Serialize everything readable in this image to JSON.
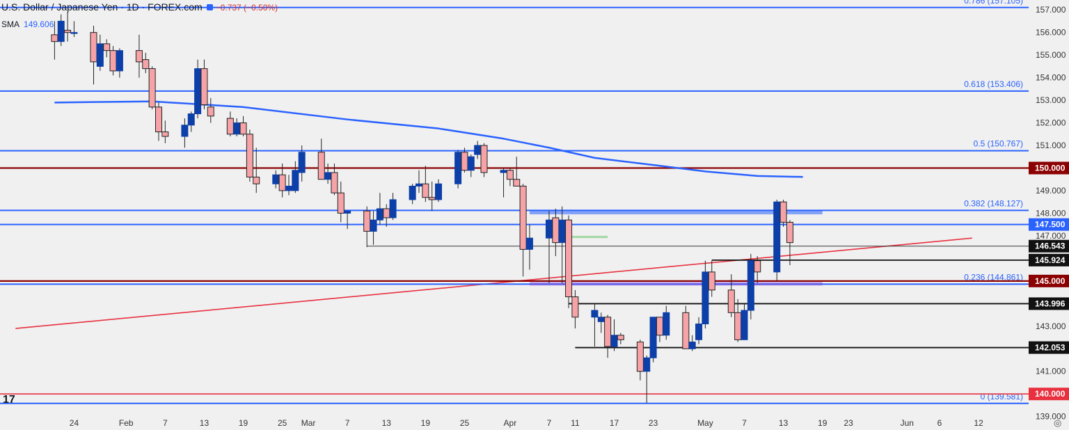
{
  "header": {
    "title": "U.S. Dollar / Japanese Yen · 1D · FOREX.com",
    "change": "−0.737 (−0.50%)"
  },
  "indicator": {
    "name": "SMA",
    "value": "149.606"
  },
  "colors": {
    "background": "#f0f0f0",
    "up_candle": "#0d3fa8",
    "down_candle": "#f5a3a7",
    "fib_line": "#2962ff",
    "sma_line": "#2962ff",
    "round_level": "#8b0000",
    "trendline": "#e8303f"
  },
  "chart_data": {
    "type": "candlestick",
    "title": "U.S. Dollar / Japanese Yen · 1D · FOREX.com",
    "symbol": "USD/JPY",
    "timeframe": "1D",
    "ylim": [
      139.0,
      157.3
    ],
    "y_ticks": [
      "157.000",
      "156.000",
      "155.000",
      "154.000",
      "153.000",
      "152.000",
      "151.000",
      "150.000",
      "149.000",
      "148.000",
      "147.000",
      "146.000",
      "145.000",
      "144.000",
      "143.000",
      "142.000",
      "141.000",
      "140.000",
      "139.000"
    ],
    "x_ticks": [
      "24",
      "Feb",
      "7",
      "13",
      "19",
      "25",
      "Mar",
      "7",
      "13",
      "19",
      "25",
      "Apr",
      "7",
      "11",
      "17",
      "23",
      "May",
      "7",
      "13",
      "19",
      "23",
      "Jun",
      "6",
      "12"
    ],
    "candles": [
      {
        "d": "2025-01-21",
        "o": 155.9,
        "h": 156.5,
        "l": 154.8,
        "c": 155.6
      },
      {
        "d": "2025-01-22",
        "o": 155.6,
        "h": 156.8,
        "l": 155.4,
        "c": 156.5
      },
      {
        "d": "2025-01-23",
        "o": 156.1,
        "h": 156.9,
        "l": 155.6,
        "c": 156.0
      },
      {
        "d": "2025-01-24",
        "o": 156.0,
        "h": 156.5,
        "l": 155.8,
        "c": 156.0
      },
      {
        "d": "2025-01-27",
        "o": 156.0,
        "h": 156.3,
        "l": 153.7,
        "c": 154.7
      },
      {
        "d": "2025-01-28",
        "o": 154.5,
        "h": 155.9,
        "l": 154.3,
        "c": 155.5
      },
      {
        "d": "2025-01-29",
        "o": 155.5,
        "h": 155.7,
        "l": 154.9,
        "c": 155.2
      },
      {
        "d": "2025-01-30",
        "o": 155.2,
        "h": 155.4,
        "l": 154.1,
        "c": 154.3
      },
      {
        "d": "2025-01-31",
        "o": 154.3,
        "h": 155.3,
        "l": 154.0,
        "c": 155.2
      },
      {
        "d": "2025-02-03",
        "o": 155.2,
        "h": 155.9,
        "l": 154.0,
        "c": 154.7
      },
      {
        "d": "2025-02-04",
        "o": 154.8,
        "h": 155.1,
        "l": 154.2,
        "c": 154.4
      },
      {
        "d": "2025-02-05",
        "o": 154.4,
        "h": 154.5,
        "l": 152.6,
        "c": 152.7
      },
      {
        "d": "2025-02-06",
        "o": 152.7,
        "h": 152.9,
        "l": 151.2,
        "c": 151.6
      },
      {
        "d": "2025-02-07",
        "o": 151.6,
        "h": 152.1,
        "l": 151.1,
        "c": 151.4
      },
      {
        "d": "2025-02-10",
        "o": 151.4,
        "h": 152.2,
        "l": 150.9,
        "c": 151.9
      },
      {
        "d": "2025-02-11",
        "o": 151.9,
        "h": 152.5,
        "l": 151.6,
        "c": 152.4
      },
      {
        "d": "2025-02-12",
        "o": 152.4,
        "h": 154.8,
        "l": 152.2,
        "c": 154.4
      },
      {
        "d": "2025-02-13",
        "o": 154.4,
        "h": 154.8,
        "l": 152.6,
        "c": 152.8
      },
      {
        "d": "2025-02-14",
        "o": 152.7,
        "h": 153.1,
        "l": 152.0,
        "c": 152.3
      },
      {
        "d": "2025-02-17",
        "o": 152.2,
        "h": 152.5,
        "l": 151.4,
        "c": 151.5
      },
      {
        "d": "2025-02-18",
        "o": 151.5,
        "h": 152.2,
        "l": 151.4,
        "c": 152.0
      },
      {
        "d": "2025-02-19",
        "o": 152.0,
        "h": 152.3,
        "l": 151.4,
        "c": 151.5
      },
      {
        "d": "2025-02-20",
        "o": 151.5,
        "h": 151.7,
        "l": 149.4,
        "c": 149.6
      },
      {
        "d": "2025-02-21",
        "o": 149.6,
        "h": 150.9,
        "l": 148.9,
        "c": 149.3
      },
      {
        "d": "2025-02-24",
        "o": 149.3,
        "h": 149.9,
        "l": 149.1,
        "c": 149.7
      },
      {
        "d": "2025-02-25",
        "o": 149.7,
        "h": 150.2,
        "l": 148.7,
        "c": 149.0
      },
      {
        "d": "2025-02-26",
        "o": 149.0,
        "h": 149.7,
        "l": 148.8,
        "c": 149.2
      },
      {
        "d": "2025-02-27",
        "o": 149.0,
        "h": 150.3,
        "l": 148.9,
        "c": 149.9
      },
      {
        "d": "2025-02-28",
        "o": 149.8,
        "h": 151.0,
        "l": 149.4,
        "c": 150.7
      },
      {
        "d": "2025-03-03",
        "o": 150.7,
        "h": 151.3,
        "l": 149.5,
        "c": 149.5
      },
      {
        "d": "2025-03-04",
        "o": 149.5,
        "h": 150.2,
        "l": 149.3,
        "c": 149.8
      },
      {
        "d": "2025-03-05",
        "o": 149.8,
        "h": 150.2,
        "l": 148.8,
        "c": 148.9
      },
      {
        "d": "2025-03-06",
        "o": 148.9,
        "h": 149.4,
        "l": 147.6,
        "c": 148.0
      },
      {
        "d": "2025-03-07",
        "o": 148.0,
        "h": 148.1,
        "l": 147.3,
        "c": 148.1
      },
      {
        "d": "2025-03-10",
        "o": 148.1,
        "h": 148.3,
        "l": 146.5,
        "c": 147.2
      },
      {
        "d": "2025-03-11",
        "o": 147.2,
        "h": 148.1,
        "l": 146.6,
        "c": 147.7
      },
      {
        "d": "2025-03-12",
        "o": 147.7,
        "h": 148.9,
        "l": 147.5,
        "c": 148.2
      },
      {
        "d": "2025-03-13",
        "o": 148.2,
        "h": 148.4,
        "l": 147.4,
        "c": 147.8
      },
      {
        "d": "2025-03-14",
        "o": 147.8,
        "h": 148.9,
        "l": 147.7,
        "c": 148.6
      },
      {
        "d": "2025-03-17",
        "o": 148.6,
        "h": 149.3,
        "l": 148.4,
        "c": 149.2
      },
      {
        "d": "2025-03-18",
        "o": 149.2,
        "h": 149.9,
        "l": 148.9,
        "c": 149.3
      },
      {
        "d": "2025-03-19",
        "o": 149.3,
        "h": 150.1,
        "l": 148.5,
        "c": 148.7
      },
      {
        "d": "2025-03-20",
        "o": 148.7,
        "h": 149.4,
        "l": 148.1,
        "c": 148.6
      },
      {
        "d": "2025-03-21",
        "o": 148.6,
        "h": 149.5,
        "l": 148.5,
        "c": 149.3
      },
      {
        "d": "2025-03-24",
        "o": 149.3,
        "h": 150.8,
        "l": 149.1,
        "c": 150.7
      },
      {
        "d": "2025-03-25",
        "o": 150.7,
        "h": 150.9,
        "l": 149.8,
        "c": 149.9
      },
      {
        "d": "2025-03-26",
        "o": 149.9,
        "h": 150.6,
        "l": 149.6,
        "c": 150.5
      },
      {
        "d": "2025-03-27",
        "o": 150.6,
        "h": 151.2,
        "l": 150.4,
        "c": 151.0
      },
      {
        "d": "2025-03-28",
        "o": 151.0,
        "h": 151.1,
        "l": 149.6,
        "c": 149.8
      },
      {
        "d": "2025-03-31",
        "o": 149.8,
        "h": 150.0,
        "l": 148.7,
        "c": 149.9
      },
      {
        "d": "2025-04-01",
        "o": 149.9,
        "h": 150.0,
        "l": 149.2,
        "c": 149.5
      },
      {
        "d": "2025-04-02",
        "o": 149.5,
        "h": 150.5,
        "l": 149.2,
        "c": 149.2
      },
      {
        "d": "2025-04-03",
        "o": 149.2,
        "h": 149.3,
        "l": 145.2,
        "c": 146.4
      },
      {
        "d": "2025-04-04",
        "o": 146.4,
        "h": 147.5,
        "l": 145.5,
        "c": 146.9
      },
      {
        "d": "2025-04-07",
        "o": 146.9,
        "h": 148.1,
        "l": 144.9,
        "c": 147.7
      },
      {
        "d": "2025-04-08",
        "o": 147.8,
        "h": 148.2,
        "l": 146.1,
        "c": 146.7
      },
      {
        "d": "2025-04-09",
        "o": 146.7,
        "h": 148.3,
        "l": 144.9,
        "c": 147.7
      },
      {
        "d": "2025-04-10",
        "o": 147.7,
        "h": 147.9,
        "l": 143.8,
        "c": 144.3
      },
      {
        "d": "2025-04-11",
        "o": 144.3,
        "h": 144.6,
        "l": 142.9,
        "c": 143.4
      },
      {
        "d": "2025-04-14",
        "o": 143.4,
        "h": 144.0,
        "l": 142.1,
        "c": 143.7
      },
      {
        "d": "2025-04-15",
        "o": 143.2,
        "h": 143.6,
        "l": 142.7,
        "c": 143.4
      },
      {
        "d": "2025-04-16",
        "o": 143.4,
        "h": 143.5,
        "l": 141.6,
        "c": 142.1
      },
      {
        "d": "2025-04-17",
        "o": 142.1,
        "h": 143.3,
        "l": 141.9,
        "c": 142.6
      },
      {
        "d": "2025-04-18",
        "o": 142.6,
        "h": 142.7,
        "l": 142.2,
        "c": 142.4
      },
      {
        "d": "2025-04-21",
        "o": 142.3,
        "h": 142.4,
        "l": 140.6,
        "c": 141.0
      },
      {
        "d": "2025-04-22",
        "o": 141.0,
        "h": 141.7,
        "l": 139.6,
        "c": 141.6
      },
      {
        "d": "2025-04-23",
        "o": 141.6,
        "h": 143.3,
        "l": 141.4,
        "c": 143.4
      },
      {
        "d": "2025-04-24",
        "o": 143.4,
        "h": 143.4,
        "l": 142.3,
        "c": 142.6
      },
      {
        "d": "2025-04-25",
        "o": 142.6,
        "h": 143.9,
        "l": 142.4,
        "c": 143.6
      },
      {
        "d": "2025-04-28",
        "o": 143.6,
        "h": 143.9,
        "l": 142.0,
        "c": 142.0
      },
      {
        "d": "2025-04-29",
        "o": 142.0,
        "h": 142.6,
        "l": 141.9,
        "c": 142.3
      },
      {
        "d": "2025-04-30",
        "o": 142.4,
        "h": 143.4,
        "l": 142.2,
        "c": 143.1
      },
      {
        "d": "2025-05-01",
        "o": 143.1,
        "h": 145.9,
        "l": 142.9,
        "c": 145.4
      },
      {
        "d": "2025-05-02",
        "o": 145.4,
        "h": 145.9,
        "l": 144.3,
        "c": 144.6
      },
      {
        "d": "2025-05-05",
        "o": 144.6,
        "h": 145.3,
        "l": 143.4,
        "c": 143.6
      },
      {
        "d": "2025-05-06",
        "o": 143.6,
        "h": 144.2,
        "l": 142.3,
        "c": 142.4
      },
      {
        "d": "2025-05-07",
        "o": 142.4,
        "h": 144.0,
        "l": 142.4,
        "c": 143.7
      },
      {
        "d": "2025-05-08",
        "o": 143.7,
        "h": 146.2,
        "l": 143.3,
        "c": 145.9
      },
      {
        "d": "2025-05-09",
        "o": 145.9,
        "h": 146.1,
        "l": 144.9,
        "c": 145.4
      },
      {
        "d": "2025-05-12",
        "o": 145.4,
        "h": 148.6,
        "l": 145.0,
        "c": 148.5
      },
      {
        "d": "2025-05-13",
        "o": 148.5,
        "h": 148.6,
        "l": 147.4,
        "c": 147.6
      },
      {
        "d": "2025-05-14",
        "o": 147.6,
        "h": 147.7,
        "l": 145.7,
        "c": 146.7
      }
    ],
    "sma": {
      "label": "SMA",
      "value": 149.606,
      "points": [
        [
          "2025-01-21",
          152.9
        ],
        [
          "2025-02-05",
          152.95
        ],
        [
          "2025-02-19",
          152.7
        ],
        [
          "2025-03-07",
          152.15
        ],
        [
          "2025-03-21",
          151.75
        ],
        [
          "2025-03-31",
          151.3
        ],
        [
          "2025-04-07",
          150.9
        ],
        [
          "2025-04-14",
          150.45
        ],
        [
          "2025-04-24",
          150.1
        ],
        [
          "2025-05-01",
          149.85
        ],
        [
          "2025-05-09",
          149.65
        ],
        [
          "2025-05-16",
          149.606
        ]
      ]
    },
    "horizontal_levels": [
      {
        "label": "0.786 (157.105)",
        "value": 157.105,
        "kind": "fib"
      },
      {
        "label": "0.618 (153.406)",
        "value": 153.406,
        "kind": "fib"
      },
      {
        "label": "0.5 (150.767)",
        "value": 150.767,
        "kind": "fib"
      },
      {
        "label": "0.382 (148.127)",
        "value": 148.127,
        "kind": "fib"
      },
      {
        "label": "0.236 (144.861)",
        "value": 144.861,
        "kind": "fib"
      },
      {
        "label": "0 (139.581)",
        "value": 139.581,
        "kind": "fib"
      }
    ],
    "price_tags": [
      {
        "label": "150.000",
        "value": 150.0,
        "kind": "round"
      },
      {
        "label": "147.500",
        "value": 147.5,
        "kind": "blue"
      },
      {
        "label": "146.543",
        "value": 146.543,
        "kind": "black"
      },
      {
        "label": "145.924",
        "value": 145.924,
        "kind": "black"
      },
      {
        "label": "145.000",
        "value": 145.0,
        "kind": "round"
      },
      {
        "label": "143.996",
        "value": 143.996,
        "kind": "black"
      },
      {
        "label": "142.053",
        "value": 142.053,
        "kind": "black"
      },
      {
        "label": "140.000",
        "value": 140.0,
        "kind": "red"
      }
    ],
    "support_lines": [
      {
        "value": 146.543,
        "from": "2025-03-10"
      },
      {
        "value": 145.924,
        "from": "2025-05-02"
      },
      {
        "value": 143.996,
        "from": "2025-04-10"
      },
      {
        "value": 142.053,
        "from": "2025-04-11"
      }
    ],
    "zones": [
      {
        "from": "2025-04-04",
        "to": "2025-05-19",
        "low": 147.95,
        "high": 148.15,
        "color": "blue"
      },
      {
        "from": "2025-04-07",
        "to": "2025-04-16",
        "low": 146.9,
        "high": 147.0,
        "color": "green"
      },
      {
        "from": "2025-04-04",
        "to": "2025-05-19",
        "low": 144.8,
        "high": 144.95,
        "color": "purple"
      }
    ],
    "trendline": {
      "from": [
        "2025-01-15",
        142.9
      ],
      "to": [
        "2025-06-11",
        146.9
      ]
    }
  }
}
